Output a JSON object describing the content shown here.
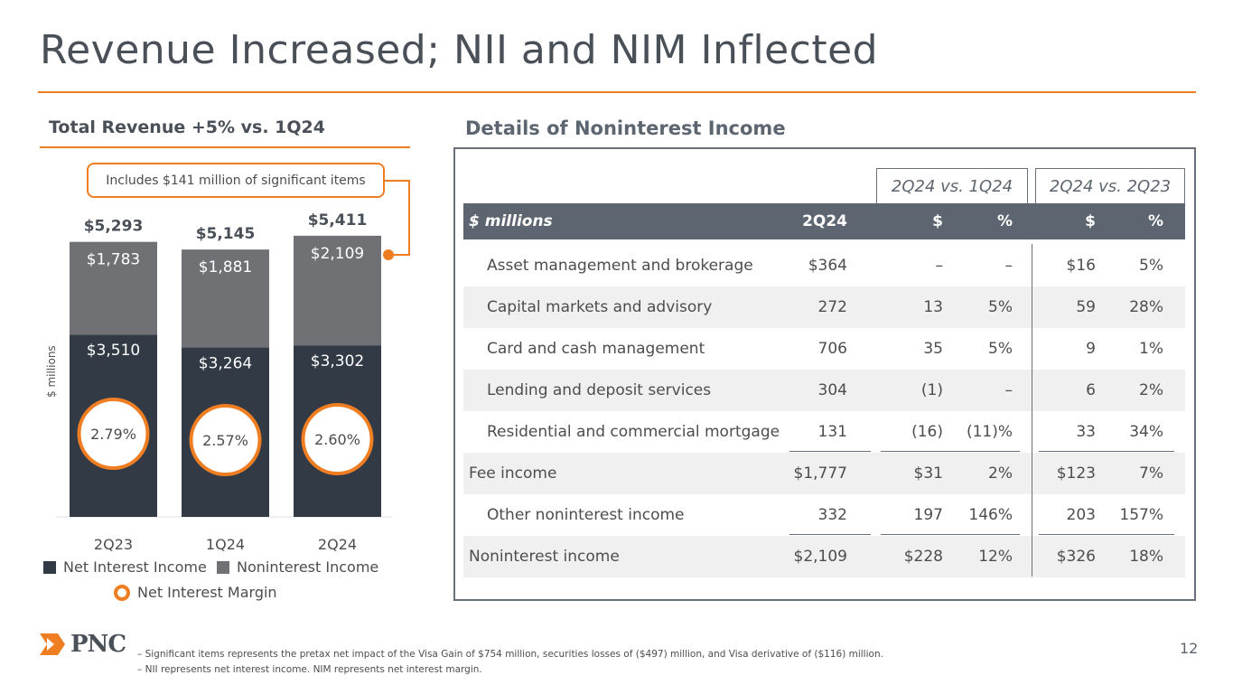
{
  "slide": {
    "title": "Revenue Increased; NII and NIM Inflected",
    "page_number": "12"
  },
  "left": {
    "heading": "Total Revenue +5% vs. 1Q24",
    "callout": "Includes $141 million of significant items",
    "y_axis_label": "$ millions"
  },
  "chart_data": {
    "type": "bar",
    "stacked": true,
    "categories": [
      "2Q23",
      "1Q24",
      "2Q24"
    ],
    "series": [
      {
        "name": "Net Interest Income",
        "color": "#323a45",
        "values": [
          3510,
          3264,
          3302
        ],
        "labels": [
          "$3,510",
          "$3,264",
          "$3,302"
        ]
      },
      {
        "name": "Noninterest Income",
        "color": "#707175",
        "values": [
          1783,
          1881,
          2109
        ],
        "labels": [
          "$1,783",
          "$1,881",
          "$2,109"
        ]
      }
    ],
    "totals": [
      "$5,293",
      "$5,145",
      "$5,411"
    ],
    "total_values": [
      5293,
      5145,
      5411
    ],
    "nim": {
      "name": "Net Interest Margin",
      "values": [
        2.79,
        2.57,
        2.6
      ],
      "labels": [
        "2.79%",
        "2.57%",
        "2.60%"
      ],
      "color": "#ef7d22"
    },
    "ylim": [
      0,
      6000
    ],
    "ylabel": "$ millions",
    "legend_position": "bottom"
  },
  "right": {
    "heading": "Details of Noninterest Income",
    "group1": "2Q24 vs. 1Q24",
    "group2": "2Q24 vs. 2Q23",
    "header": {
      "label": "$ millions",
      "c1": "2Q24",
      "c2": "$",
      "c3": "%",
      "c4": "$",
      "c5": "%"
    },
    "rows": [
      {
        "label": "Asset management and brokerage",
        "c1": "$364",
        "c2": "–",
        "c3": "–",
        "c4": "$16",
        "c5": "5%"
      },
      {
        "label": "Capital markets and advisory",
        "c1": "272",
        "c2": "13",
        "c3": "5%",
        "c4": "59",
        "c5": "28%"
      },
      {
        "label": "Card and cash management",
        "c1": "706",
        "c2": "35",
        "c3": "5%",
        "c4": "9",
        "c5": "1%"
      },
      {
        "label": "Lending and deposit services",
        "c1": "304",
        "c2": "(1)",
        "c3": "–",
        "c4": "6",
        "c5": "2%"
      },
      {
        "label": "Residential and commercial mortgage",
        "c1": "131",
        "c2": "(16)",
        "c3": "(11)%",
        "c4": "33",
        "c5": "34%"
      },
      {
        "label": "Fee income",
        "c1": "$1,777",
        "c2": "$31",
        "c3": "2%",
        "c4": "$123",
        "c5": "7%"
      },
      {
        "label": "Other noninterest income",
        "c1": "332",
        "c2": "197",
        "c3": "146%",
        "c4": "203",
        "c5": "157%"
      },
      {
        "label": "Noninterest income",
        "c1": "$2,109",
        "c2": "$228",
        "c3": "12%",
        "c4": "$326",
        "c5": "18%"
      }
    ]
  },
  "footer": {
    "logo": "PNC",
    "note1": "–  Significant items represents the pretax net impact of the Visa Gain of $754 million, securities losses of ($497) million, and Visa derivative of ($116) million.",
    "note2": "–  NII represents net interest income. NIM represents net interest margin."
  },
  "colors": {
    "accent": "#ef7d22",
    "nii": "#323a45",
    "nonii": "#707175",
    "header": "#5d6670"
  }
}
